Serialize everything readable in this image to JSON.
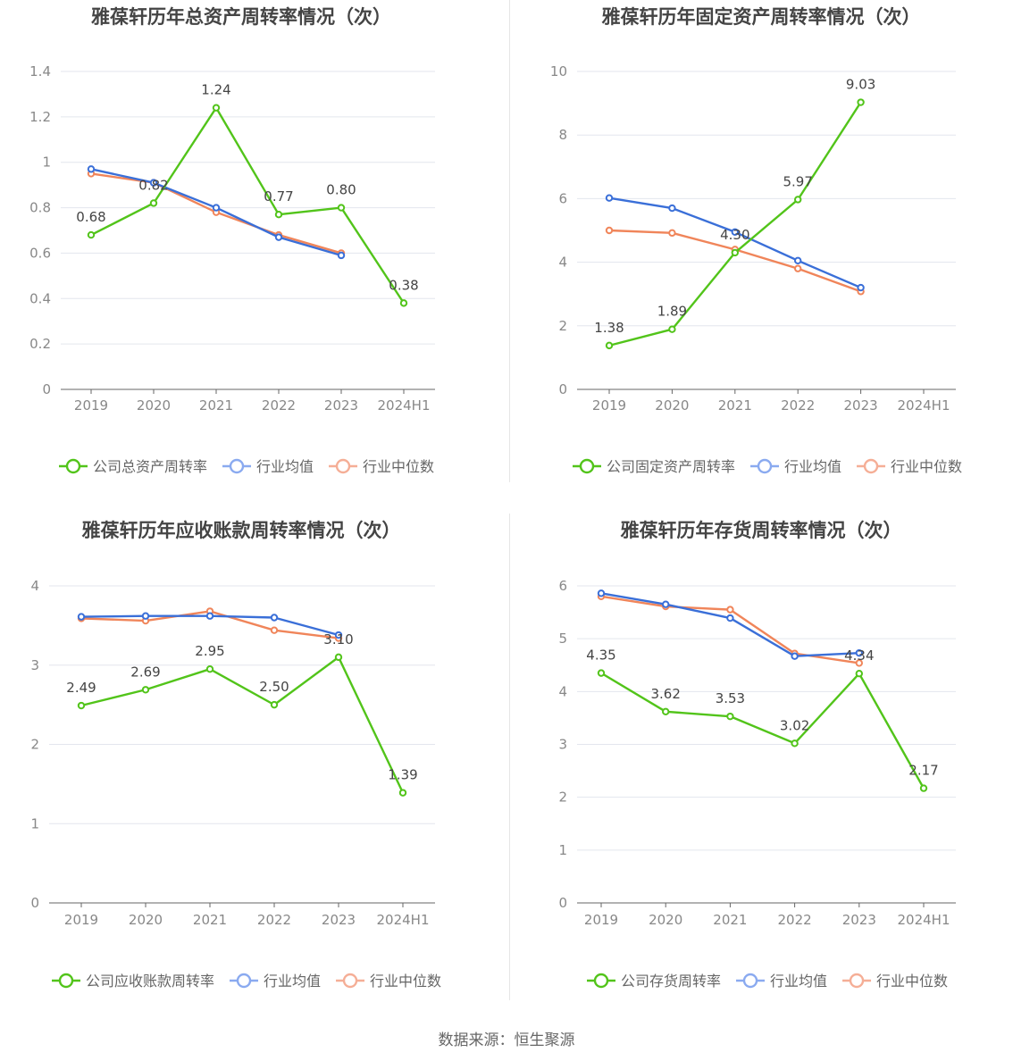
{
  "source": "数据来源：恒生聚源",
  "colors": {
    "company": "#52c41a",
    "average": "#3a6fd8",
    "median": "#f0855a"
  },
  "chart_data": [
    {
      "type": "line",
      "title": "雅葆轩历年总资产周转率情况（次）",
      "categories": [
        "2019",
        "2020",
        "2021",
        "2022",
        "2023",
        "2024H1"
      ],
      "ylim": [
        0,
        1.4
      ],
      "yticks": [
        "0",
        "0.2",
        "0.4",
        "0.6",
        "0.8",
        "1",
        "1.2",
        "1.4"
      ],
      "series": [
        {
          "name": "公司总资产周转率",
          "values": [
            0.68,
            0.82,
            1.24,
            0.77,
            0.8,
            0.38
          ],
          "labels": [
            "0.68",
            "0.82",
            "1.24",
            "0.77",
            "0.80",
            "0.38"
          ]
        },
        {
          "name": "行业均值",
          "values": [
            0.97,
            0.91,
            0.8,
            0.67,
            0.59,
            null
          ]
        },
        {
          "name": "行业中位数",
          "values": [
            0.95,
            0.91,
            0.78,
            0.68,
            0.6,
            null
          ]
        }
      ]
    },
    {
      "type": "line",
      "title": "雅葆轩历年固定资产周转率情况（次）",
      "categories": [
        "2019",
        "2020",
        "2021",
        "2022",
        "2023",
        "2024H1"
      ],
      "ylim": [
        0,
        10
      ],
      "yticks": [
        "0",
        "2",
        "4",
        "6",
        "8",
        "10"
      ],
      "series": [
        {
          "name": "公司固定资产周转率",
          "values": [
            1.38,
            1.89,
            4.3,
            5.97,
            9.03,
            null
          ],
          "labels": [
            "1.38",
            "1.89",
            "4.30",
            "5.97",
            "9.03",
            null
          ]
        },
        {
          "name": "行业均值",
          "values": [
            6.02,
            5.7,
            4.95,
            4.05,
            3.2,
            null
          ]
        },
        {
          "name": "行业中位数",
          "values": [
            5.0,
            4.92,
            4.4,
            3.8,
            3.08,
            null
          ]
        }
      ]
    },
    {
      "type": "line",
      "title": "雅葆轩历年应收账款周转率情况（次）",
      "categories": [
        "2019",
        "2020",
        "2021",
        "2022",
        "2023",
        "2024H1"
      ],
      "ylim": [
        0,
        4
      ],
      "yticks": [
        "0",
        "1",
        "2",
        "3",
        "4"
      ],
      "series": [
        {
          "name": "公司应收账款周转率",
          "values": [
            2.49,
            2.69,
            2.95,
            2.5,
            3.1,
            1.39
          ],
          "labels": [
            "2.49",
            "2.69",
            "2.95",
            "2.50",
            "3.10",
            "1.39"
          ]
        },
        {
          "name": "行业均值",
          "values": [
            3.61,
            3.62,
            3.62,
            3.6,
            3.38,
            null
          ]
        },
        {
          "name": "行业中位数",
          "values": [
            3.59,
            3.56,
            3.68,
            3.44,
            3.34,
            null
          ]
        }
      ]
    },
    {
      "type": "line",
      "title": "雅葆轩历年存货周转率情况（次）",
      "categories": [
        "2019",
        "2020",
        "2021",
        "2022",
        "2023",
        "2024H1"
      ],
      "ylim": [
        0,
        6
      ],
      "yticks": [
        "0",
        "1",
        "2",
        "3",
        "4",
        "5",
        "6"
      ],
      "series": [
        {
          "name": "公司存货周转率",
          "values": [
            4.35,
            3.62,
            3.53,
            3.02,
            4.34,
            2.17
          ],
          "labels": [
            "4.35",
            "3.62",
            "3.53",
            "3.02",
            "4.34",
            "2.17"
          ]
        },
        {
          "name": "行业均值",
          "values": [
            5.86,
            5.65,
            5.39,
            4.67,
            4.73,
            null
          ]
        },
        {
          "name": "行业中位数",
          "values": [
            5.8,
            5.61,
            5.55,
            4.72,
            4.54,
            null
          ]
        }
      ]
    }
  ]
}
